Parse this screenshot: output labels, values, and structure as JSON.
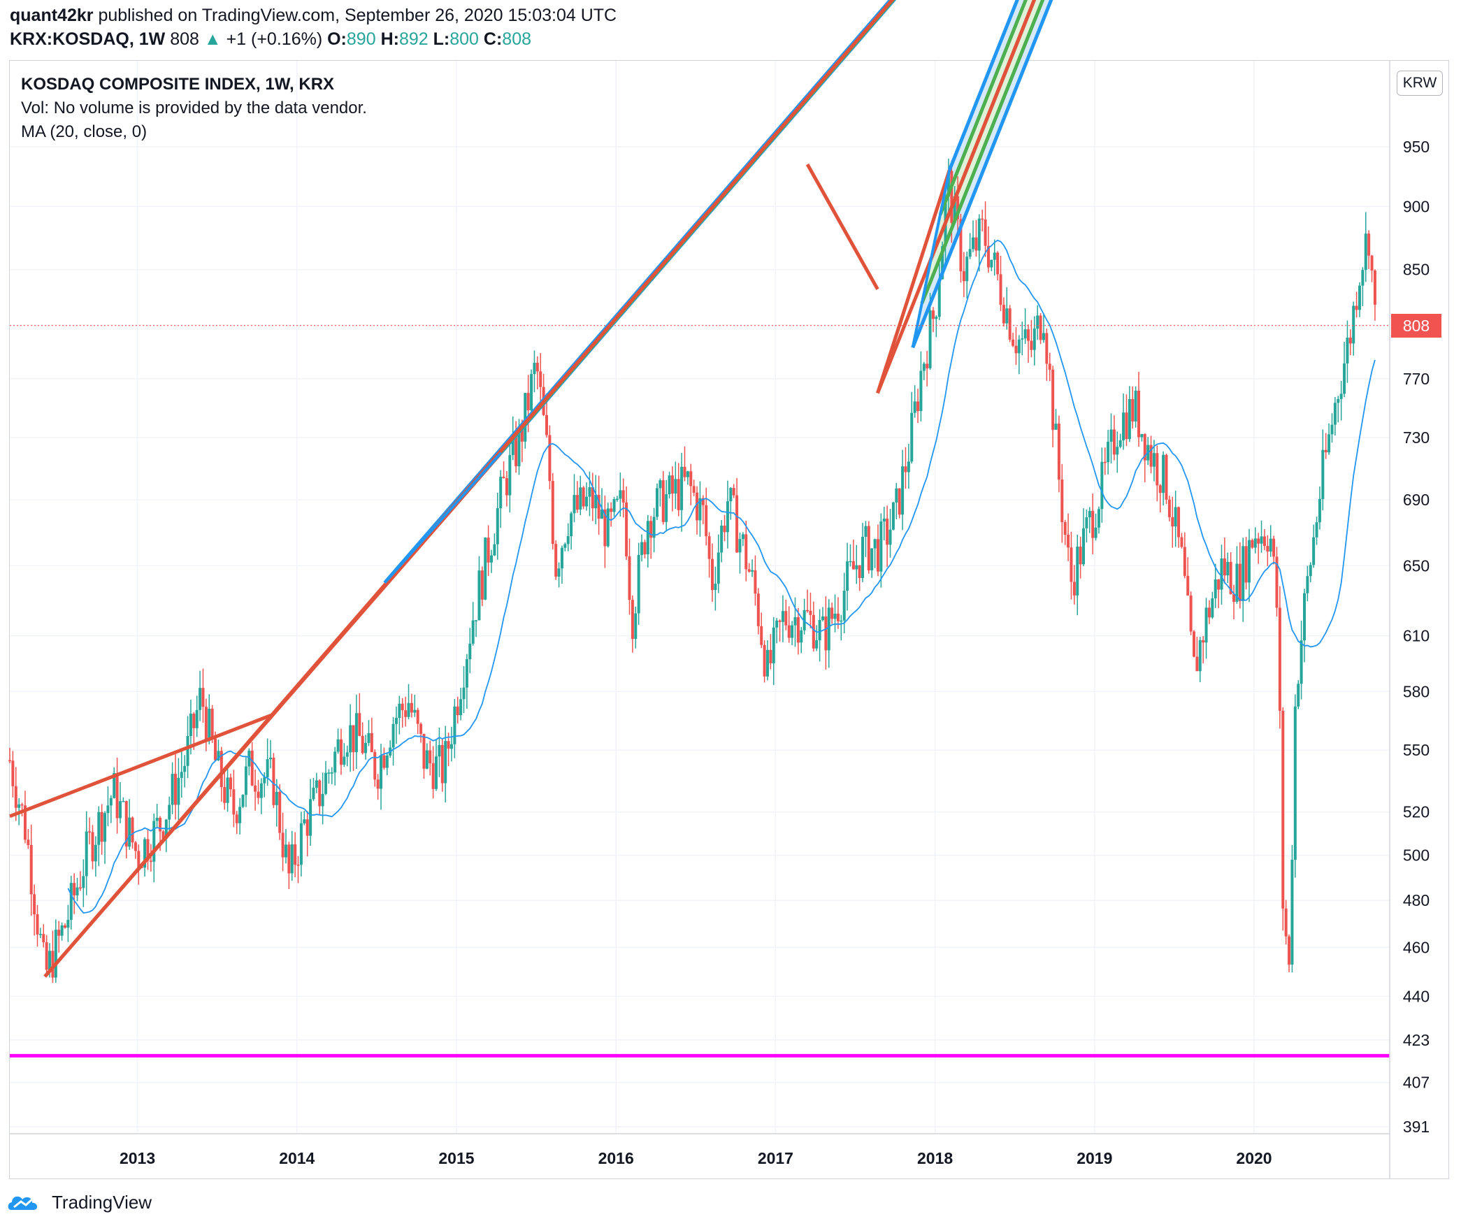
{
  "header": {
    "publisher": "quant42kr",
    "published_text": "published on TradingView.com, September 26, 2020 15:03:04 UTC",
    "symbol_tf": "KRX:KOSDAQ, 1W",
    "last": "808",
    "arrow": "▲",
    "change": "+1 (+0.16%)",
    "o_label": "O:",
    "o_val": "890",
    "h_label": "H:",
    "h_val": "892",
    "l_label": "L:",
    "l_val": "800",
    "c_label": "C:",
    "c_val": "808"
  },
  "legend": {
    "title": "KOSDAQ COMPOSITE INDEX, 1W, KRX",
    "vol": "Vol: No volume is provided by the data vendor.",
    "ma": "MA (20, close, 0)"
  },
  "unit": "KRW",
  "last_price_tag": "808",
  "footer": {
    "brand": "TradingView"
  },
  "colors": {
    "up": "#26a69a",
    "down": "#ef5350",
    "ma": "#2196f3",
    "fork_blue": "#2196f3",
    "fork_green": "#4caf50",
    "fork_red": "#e0533a",
    "magenta": "#ff00ff",
    "fill_blue": "#cfe6fb",
    "fill_green": "#dcf0d5"
  },
  "chart_data": {
    "type": "candlestick",
    "title": "KOSDAQ COMPOSITE INDEX, 1W, KRX",
    "y_ticks": [
      391,
      407,
      423,
      440,
      460,
      480,
      500,
      520,
      550,
      580,
      610,
      650,
      690,
      730,
      770,
      850,
      900,
      950
    ],
    "x_ticks": [
      "2013",
      "2014",
      "2015",
      "2016",
      "2017",
      "2018",
      "2019",
      "2020"
    ],
    "x_range": [
      2012.2,
      2020.85
    ],
    "y_scale": "log",
    "last_close": 808,
    "horizontal_line": 417,
    "pitchfork_1": {
      "p1": [
        2012.42,
        448
      ],
      "p2": [
        2015.28,
        720
      ],
      "p3": [
        2014.55,
        640
      ]
    },
    "pitchfork_2": {
      "p1": [
        2017.64,
        760
      ],
      "p2": [
        2018.09,
        930
      ],
      "p3": [
        2017.86,
        792
      ]
    },
    "red_trendlines": [
      {
        "from": [
          2012.2,
          518
        ],
        "to": [
          2013.85,
          568
        ]
      },
      {
        "from": [
          2017.2,
          935
        ],
        "to": [
          2017.64,
          835
        ]
      }
    ],
    "weekly_close_path": [
      [
        2012.2,
        545
      ],
      [
        2012.3,
        512
      ],
      [
        2012.42,
        448
      ],
      [
        2012.55,
        470
      ],
      [
        2012.7,
        505
      ],
      [
        2012.85,
        530
      ],
      [
        2013.0,
        500
      ],
      [
        2013.15,
        515
      ],
      [
        2013.3,
        545
      ],
      [
        2013.4,
        578
      ],
      [
        2013.5,
        540
      ],
      [
        2013.6,
        520
      ],
      [
        2013.7,
        540
      ],
      [
        2013.85,
        535
      ],
      [
        2013.95,
        490
      ],
      [
        2014.05,
        515
      ],
      [
        2014.15,
        530
      ],
      [
        2014.3,
        560
      ],
      [
        2014.4,
        555
      ],
      [
        2014.5,
        540
      ],
      [
        2014.6,
        565
      ],
      [
        2014.7,
        575
      ],
      [
        2014.8,
        545
      ],
      [
        2014.92,
        540
      ],
      [
        2015.0,
        575
      ],
      [
        2015.1,
        620
      ],
      [
        2015.2,
        660
      ],
      [
        2015.3,
        700
      ],
      [
        2015.4,
        730
      ],
      [
        2015.5,
        780
      ],
      [
        2015.58,
        710
      ],
      [
        2015.62,
        650
      ],
      [
        2015.7,
        680
      ],
      [
        2015.85,
        690
      ],
      [
        2015.95,
        670
      ],
      [
        2016.05,
        690
      ],
      [
        2016.1,
        620
      ],
      [
        2016.2,
        680
      ],
      [
        2016.3,
        690
      ],
      [
        2016.45,
        700
      ],
      [
        2016.55,
        680
      ],
      [
        2016.6,
        640
      ],
      [
        2016.7,
        690
      ],
      [
        2016.8,
        660
      ],
      [
        2016.88,
        630
      ],
      [
        2016.95,
        590
      ],
      [
        2017.05,
        620
      ],
      [
        2017.2,
        620
      ],
      [
        2017.3,
        610
      ],
      [
        2017.45,
        640
      ],
      [
        2017.55,
        660
      ],
      [
        2017.65,
        660
      ],
      [
        2017.75,
        680
      ],
      [
        2017.85,
        730
      ],
      [
        2017.92,
        780
      ],
      [
        2018.0,
        820
      ],
      [
        2018.08,
        920
      ],
      [
        2018.18,
        850
      ],
      [
        2018.3,
        880
      ],
      [
        2018.4,
        840
      ],
      [
        2018.5,
        800
      ],
      [
        2018.6,
        790
      ],
      [
        2018.68,
        820
      ],
      [
        2018.78,
        700
      ],
      [
        2018.85,
        640
      ],
      [
        2018.95,
        670
      ],
      [
        2019.05,
        700
      ],
      [
        2019.15,
        740
      ],
      [
        2019.25,
        750
      ],
      [
        2019.35,
        720
      ],
      [
        2019.45,
        700
      ],
      [
        2019.55,
        650
      ],
      [
        2019.62,
        590
      ],
      [
        2019.7,
        620
      ],
      [
        2019.8,
        650
      ],
      [
        2019.9,
        640
      ],
      [
        2020.0,
        670
      ],
      [
        2020.1,
        670
      ],
      [
        2020.15,
        620
      ],
      [
        2020.18,
        480
      ],
      [
        2020.22,
        450
      ],
      [
        2020.26,
        580
      ],
      [
        2020.32,
        630
      ],
      [
        2020.42,
        700
      ],
      [
        2020.52,
        760
      ],
      [
        2020.6,
        800
      ],
      [
        2020.66,
        850
      ],
      [
        2020.72,
        880
      ],
      [
        2020.76,
        808
      ]
    ]
  }
}
